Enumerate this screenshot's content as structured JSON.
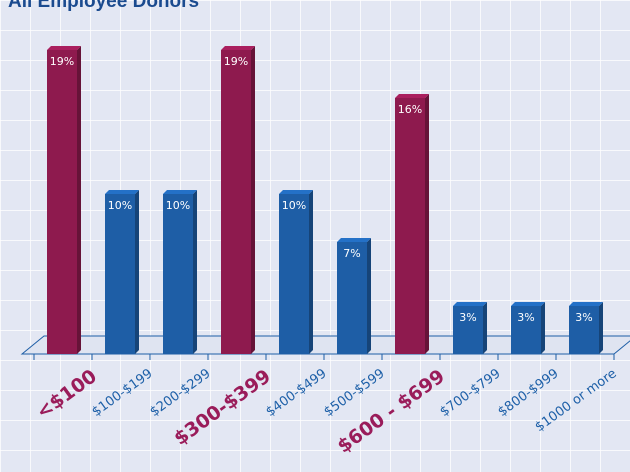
{
  "title": "All Employee Donors",
  "colors": {
    "highlight": "#8e1a4e",
    "normal": "#1e5ea6",
    "highlight_label": "#9a1c5a",
    "normal_label": "#1e60a8",
    "title": "#1b4b8f"
  },
  "chart_data": {
    "type": "bar",
    "title": "All Employee Donors",
    "categories": [
      "<$100",
      "$100-$199",
      "$200-$299",
      "$300-$399",
      "$400-$499",
      "$500-$599",
      "$600 - $699",
      "$700-$799",
      "$800-$999",
      "$1000 or more"
    ],
    "values": [
      19,
      10,
      10,
      19,
      10,
      7,
      16,
      3,
      3,
      3
    ],
    "value_labels": [
      "19%",
      "10%",
      "10%",
      "19%",
      "10%",
      "7%",
      "16%",
      "3%",
      "3%",
      "3%"
    ],
    "highlighted": [
      true,
      false,
      false,
      true,
      false,
      false,
      true,
      false,
      false,
      false
    ],
    "unit": "%",
    "ylim": [
      0,
      20
    ],
    "grid": true,
    "legend": "none"
  }
}
